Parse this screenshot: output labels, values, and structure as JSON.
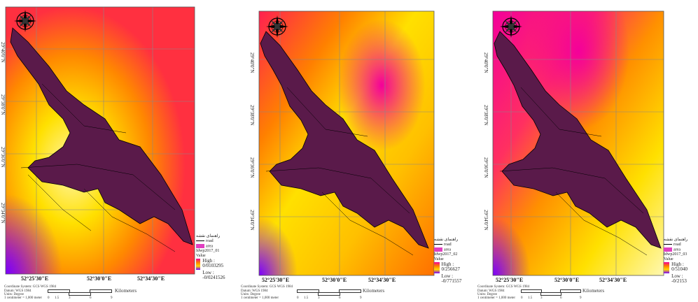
{
  "panels": [
    {
      "id": "p1",
      "lon_labels": [
        "52°25'30\"E",
        "52°30'0\"E",
        "52°34'30\"E"
      ],
      "lat_labels": [
        "29°40'0\"N",
        "29°38'0\"N",
        "29°36'0\"N",
        "29°34'0\"N"
      ],
      "legend": {
        "title": "راهنمای نقشه",
        "items": [
          "road",
          "area",
          "Idwp2017_01"
        ],
        "value_label": "Value",
        "high": "High : 0/0103295",
        "low": "Low : -0/0241526"
      },
      "meta": [
        "Coordinate System: GCS WGS 1984",
        "Datum: WGS 1984",
        "Units: Degree"
      ],
      "scale": {
        "label": "Kilometers",
        "prefix": "1 centimeter = 1,000 meter",
        "ticks": [
          "0",
          "1.5",
          "3",
          "6",
          "9"
        ]
      }
    },
    {
      "id": "p2",
      "lon_labels": [
        "52°25'30\"E",
        "52°30'0\"E",
        "52°34'30\"E"
      ],
      "lat_labels": [
        "29°40'0\"N",
        "29°38'0\"N",
        "29°36'0\"N",
        "29°34'0\"N"
      ],
      "legend": {
        "title": "راهنمای نقشه",
        "items": [
          "road",
          "area",
          "Idwp2017_02"
        ],
        "value_label": "Value",
        "high": "High : 0/256627",
        "low": "Low : -0/771557"
      },
      "meta": [
        "Coordinate System: GCS WGS 1984",
        "Datum: WGS 1984",
        "Units: Degree"
      ],
      "scale": {
        "label": "Kilometers",
        "prefix": "1 centimeter = 1,000 meter",
        "ticks": [
          "0",
          "1.5",
          "3",
          "6",
          "9"
        ]
      }
    },
    {
      "id": "p3",
      "lon_labels": [
        "52°25'30\"E",
        "52°30'0\"E",
        "52°34'30\"E"
      ],
      "lat_labels": [
        "29°40'0\"N",
        "29°38'0\"N",
        "29°36'0\"N",
        "29°34'0\"N"
      ],
      "legend": {
        "title": "راهنمای نقشه",
        "items": [
          "road",
          "area",
          "Idwp2017_03"
        ],
        "value_label": "Value",
        "high": "High : 0/51040",
        "low": "Low : -0/2153"
      },
      "meta": [
        "Coordinate System: GCS WGS 1984",
        "Datum: WGS 1984",
        "Units: Degree"
      ],
      "scale": {
        "label": "Kilometers",
        "prefix": "1 centimeter = 1,000 meter",
        "ticks": [
          "0",
          "1.5",
          "3",
          "6",
          "9"
        ]
      }
    }
  ],
  "colors": {
    "high": "#f4009a",
    "mid": "#ff7a00",
    "low_mid": "#ffe000",
    "low": "#7a00ff",
    "city": "#5a1a4a",
    "road": "#000000",
    "grid": "#888888"
  },
  "icons": {
    "north_arrow": "compass-rose-icon"
  }
}
